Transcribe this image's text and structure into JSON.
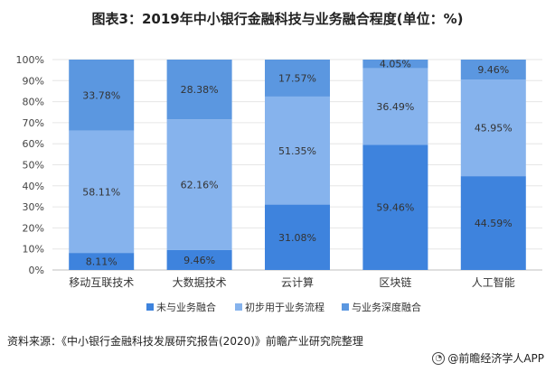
{
  "title": "图表3：2019年中小银行金融科技与业务融合程度(单位：%)",
  "source": "资料来源：《中小银行金融科技发展研究报告(2020)》前瞻产业研究院整理",
  "brand": "@前瞻经济学人APP",
  "colors": {
    "s1": "#3e83dd",
    "s2": "#86b3ed",
    "s3": "#5b97e0",
    "axis": "#bfbfbf",
    "grid": "#e6e6e6"
  },
  "chart_data": {
    "type": "bar",
    "stacked": true,
    "title": "图表3：2019年中小银行金融科技与业务融合程度(单位：%)",
    "categories": [
      "移动互联技术",
      "大数据技术",
      "云计算",
      "区块链",
      "人工智能"
    ],
    "series": [
      {
        "name": "未与业务融合",
        "values": [
          8.11,
          9.46,
          31.08,
          59.46,
          44.59
        ],
        "labels": [
          "8.11%",
          "9.46%",
          "31.08%",
          "59.46%",
          "44.59%"
        ]
      },
      {
        "name": "初步用于业务流程",
        "values": [
          58.11,
          62.16,
          51.35,
          36.49,
          45.95
        ],
        "labels": [
          "58.11%",
          "62.16%",
          "51.35%",
          "36.49%",
          "45.95%"
        ]
      },
      {
        "name": "与业务深度融合",
        "values": [
          33.78,
          28.38,
          17.57,
          4.05,
          9.46
        ],
        "labels": [
          "33.78%",
          "28.38%",
          "17.57%",
          "4.05%",
          "9.46%"
        ]
      }
    ],
    "yticks": [
      "0%",
      "10%",
      "20%",
      "30%",
      "40%",
      "50%",
      "60%",
      "70%",
      "80%",
      "90%",
      "100%"
    ],
    "ylim": [
      0,
      100
    ],
    "legend_position": "bottom"
  }
}
